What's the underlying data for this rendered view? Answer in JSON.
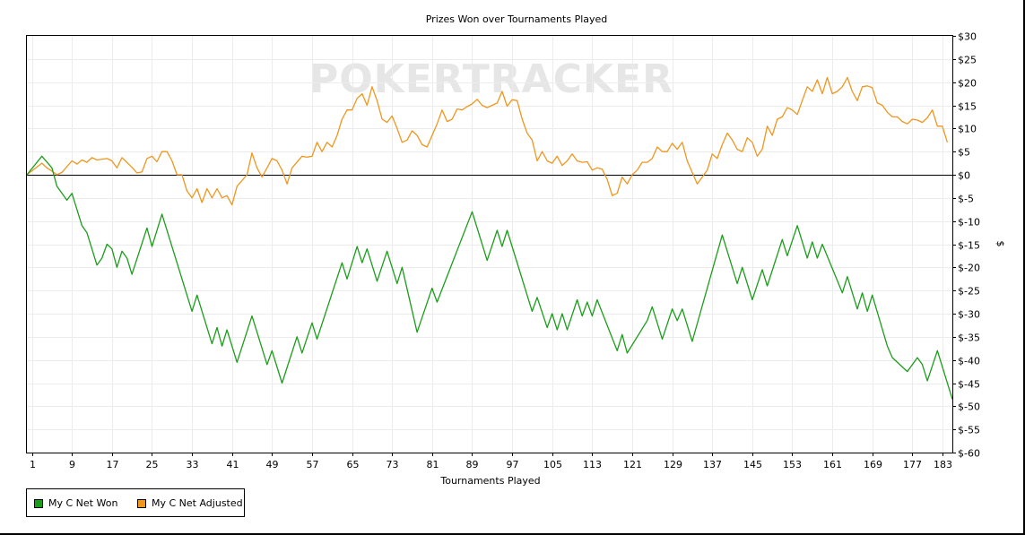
{
  "chart_data": {
    "type": "line",
    "title": "Prizes Won over Tournaments Played",
    "xlabel": "Tournaments Played",
    "ylabel": "$",
    "xlim": [
      0,
      183
    ],
    "ylim": [
      -60,
      30
    ],
    "grid": true,
    "legend_position": "bottom-left",
    "watermark": "POKERTRACKER",
    "x_ticks": [
      1,
      9,
      17,
      25,
      33,
      41,
      49,
      57,
      65,
      73,
      81,
      89,
      97,
      105,
      113,
      121,
      129,
      137,
      145,
      153,
      161,
      169,
      177,
      183
    ],
    "y_ticks": [
      30,
      25,
      20,
      15,
      10,
      5,
      0,
      -5,
      -10,
      -15,
      -20,
      -25,
      -30,
      -35,
      -40,
      -45,
      -50,
      -55,
      -60
    ],
    "y_tick_labels": [
      "$30",
      "$25",
      "$20",
      "$15",
      "$10",
      "$5",
      "$0",
      "$-5",
      "$-10",
      "$-15",
      "$-20",
      "$-25",
      "$-30",
      "$-35",
      "$-40",
      "$-45",
      "$-50",
      "$-55",
      "$-60"
    ],
    "series": [
      {
        "name": "My C Net Won",
        "color": "#1a9e1a",
        "points": [
          [
            0,
            0
          ],
          [
            3,
            4
          ],
          [
            5,
            1.5
          ],
          [
            6,
            -2.5
          ],
          [
            8,
            -5.5
          ],
          [
            9,
            -4
          ],
          [
            11,
            -11
          ],
          [
            12,
            -12.5
          ],
          [
            14,
            -19.5
          ],
          [
            15,
            -18
          ],
          [
            16,
            -15
          ],
          [
            17,
            -16
          ],
          [
            18,
            -20
          ],
          [
            19,
            -16.5
          ],
          [
            20,
            -18
          ],
          [
            21,
            -21.5
          ],
          [
            24,
            -11.5
          ],
          [
            25,
            -15.5
          ],
          [
            27,
            -8.5
          ],
          [
            33,
            -29.5
          ],
          [
            34,
            -26
          ],
          [
            37,
            -36.5
          ],
          [
            38,
            -33
          ],
          [
            39,
            -37
          ],
          [
            40,
            -33.5
          ],
          [
            42,
            -40.5
          ],
          [
            45,
            -30.5
          ],
          [
            48,
            -41
          ],
          [
            49,
            -38
          ],
          [
            51,
            -45
          ],
          [
            54,
            -35
          ],
          [
            55,
            -38.5
          ],
          [
            57,
            -32
          ],
          [
            58,
            -35.5
          ],
          [
            63,
            -19
          ],
          [
            64,
            -22.5
          ],
          [
            66,
            -15.5
          ],
          [
            67,
            -19
          ],
          [
            68,
            -16
          ],
          [
            70,
            -23
          ],
          [
            72,
            -16.5
          ],
          [
            74,
            -23.5
          ],
          [
            75,
            -20
          ],
          [
            78,
            -34
          ],
          [
            81,
            -24.5
          ],
          [
            82,
            -27.5
          ],
          [
            89,
            -8
          ],
          [
            92,
            -18.5
          ],
          [
            94,
            -12
          ],
          [
            95,
            -15.5
          ],
          [
            96,
            -12
          ],
          [
            101,
            -29.5
          ],
          [
            102,
            -26.5
          ],
          [
            104,
            -33
          ],
          [
            105,
            -30
          ],
          [
            106,
            -33.5
          ],
          [
            107,
            -30
          ],
          [
            108,
            -33.5
          ],
          [
            110,
            -27
          ],
          [
            111,
            -30.5
          ],
          [
            112,
            -27.5
          ],
          [
            113,
            -30.5
          ],
          [
            114,
            -27
          ],
          [
            118,
            -38
          ],
          [
            119,
            -34.5
          ],
          [
            120,
            -38.5
          ],
          [
            124,
            -31.5
          ],
          [
            125,
            -28.5
          ],
          [
            127,
            -35.5
          ],
          [
            129,
            -29
          ],
          [
            130,
            -31.5
          ],
          [
            131,
            -29
          ],
          [
            133,
            -36
          ],
          [
            139,
            -13
          ],
          [
            142,
            -23.5
          ],
          [
            143,
            -20
          ],
          [
            145,
            -27
          ],
          [
            147,
            -20.5
          ],
          [
            148,
            -24
          ],
          [
            151,
            -14
          ],
          [
            152,
            -17.5
          ],
          [
            154,
            -11
          ],
          [
            156,
            -18
          ],
          [
            157,
            -14.5
          ],
          [
            158,
            -18
          ],
          [
            159,
            -15
          ],
          [
            163,
            -25.5
          ],
          [
            164,
            -22
          ],
          [
            166,
            -29
          ],
          [
            167,
            -25.5
          ],
          [
            168,
            -29.5
          ],
          [
            169,
            -26
          ],
          [
            172,
            -37
          ],
          [
            173,
            -39.5
          ],
          [
            176,
            -42.5
          ],
          [
            178,
            -39.5
          ],
          [
            179,
            -41
          ],
          [
            180,
            -44.5
          ],
          [
            182,
            -38
          ],
          [
            185,
            -48.5
          ]
        ]
      },
      {
        "name": "My C Net Adjusted",
        "color": "#f0961e",
        "points": [
          [
            0,
            0
          ],
          [
            3,
            2.5
          ],
          [
            4,
            1.5
          ],
          [
            5,
            0.8
          ],
          [
            6,
            0
          ],
          [
            7,
            0.5
          ],
          [
            9,
            3
          ],
          [
            10,
            2.3
          ],
          [
            11,
            3.2
          ],
          [
            12,
            2.7
          ],
          [
            13,
            3.7
          ],
          [
            14,
            3.2
          ],
          [
            16,
            3.5
          ],
          [
            17,
            3
          ],
          [
            18,
            1.5
          ],
          [
            19,
            3.7
          ],
          [
            21,
            1.6
          ],
          [
            22,
            0.4
          ],
          [
            23,
            0.6
          ],
          [
            24,
            3.5
          ],
          [
            25,
            4
          ],
          [
            26,
            2.8
          ],
          [
            27,
            5
          ],
          [
            28,
            5
          ],
          [
            29,
            3
          ],
          [
            30,
            0
          ],
          [
            31,
            0
          ],
          [
            32,
            -3.5
          ],
          [
            33,
            -5
          ],
          [
            34,
            -3
          ],
          [
            35,
            -6
          ],
          [
            36,
            -3
          ],
          [
            37,
            -5
          ],
          [
            38,
            -3
          ],
          [
            39,
            -5
          ],
          [
            40,
            -4.5
          ],
          [
            41,
            -6.5
          ],
          [
            42,
            -2.5
          ],
          [
            44,
            0
          ],
          [
            45,
            4.7
          ],
          [
            46,
            1.5
          ],
          [
            47,
            -0.5
          ],
          [
            48,
            1.5
          ],
          [
            49,
            3.5
          ],
          [
            50,
            3
          ],
          [
            51,
            1
          ],
          [
            52,
            -2
          ],
          [
            53,
            1.5
          ],
          [
            55,
            4
          ],
          [
            56,
            3.8
          ],
          [
            57,
            4
          ],
          [
            58,
            7
          ],
          [
            59,
            5
          ],
          [
            60,
            7
          ],
          [
            61,
            6
          ],
          [
            62,
            8.5
          ],
          [
            63,
            12
          ],
          [
            64,
            14
          ],
          [
            65,
            14
          ],
          [
            66,
            16.5
          ],
          [
            67,
            17.5
          ],
          [
            68,
            15
          ],
          [
            69,
            19
          ],
          [
            70,
            16
          ],
          [
            71,
            12
          ],
          [
            72,
            11.3
          ],
          [
            73,
            12.7
          ],
          [
            74,
            10
          ],
          [
            75,
            7
          ],
          [
            76,
            7.5
          ],
          [
            77,
            9.5
          ],
          [
            78,
            8.5
          ],
          [
            79,
            6.5
          ],
          [
            80,
            6
          ],
          [
            82,
            11
          ],
          [
            83,
            14
          ],
          [
            84,
            11.5
          ],
          [
            85,
            12
          ],
          [
            86,
            14.2
          ],
          [
            87,
            14
          ],
          [
            88,
            14.7
          ],
          [
            89,
            15.3
          ],
          [
            90,
            16.3
          ],
          [
            91,
            15
          ],
          [
            92,
            14.5
          ],
          [
            93,
            15
          ],
          [
            94,
            15.5
          ],
          [
            95,
            18
          ],
          [
            96,
            14.8
          ],
          [
            97,
            16.2
          ],
          [
            98,
            16
          ],
          [
            99,
            12
          ],
          [
            100,
            9
          ],
          [
            101,
            7.5
          ],
          [
            102,
            3
          ],
          [
            103,
            5
          ],
          [
            104,
            3
          ],
          [
            105,
            2.5
          ],
          [
            106,
            4
          ],
          [
            107,
            2
          ],
          [
            108,
            3
          ],
          [
            109,
            4.5
          ],
          [
            110,
            3
          ],
          [
            111,
            2.7
          ],
          [
            112,
            2.8
          ],
          [
            113,
            1
          ],
          [
            114,
            1.5
          ],
          [
            115,
            1.2
          ],
          [
            116,
            -1
          ],
          [
            117,
            -4.5
          ],
          [
            118,
            -4
          ],
          [
            119,
            -0.5
          ],
          [
            120,
            -2
          ],
          [
            121,
            0
          ],
          [
            122,
            1
          ],
          [
            123,
            2.7
          ],
          [
            124,
            2.7
          ],
          [
            125,
            3.5
          ],
          [
            126,
            6
          ],
          [
            127,
            5
          ],
          [
            128,
            5
          ],
          [
            129,
            6.8
          ],
          [
            130,
            5.5
          ],
          [
            131,
            7
          ],
          [
            132,
            3
          ],
          [
            133,
            0.5
          ],
          [
            134,
            -2
          ],
          [
            135,
            -0.5
          ],
          [
            136,
            1
          ],
          [
            137,
            4.5
          ],
          [
            138,
            3.5
          ],
          [
            139,
            6.5
          ],
          [
            140,
            9
          ],
          [
            141,
            7.5
          ],
          [
            142,
            5.5
          ],
          [
            143,
            5
          ],
          [
            144,
            8
          ],
          [
            145,
            7
          ],
          [
            146,
            4
          ],
          [
            147,
            5.5
          ],
          [
            148,
            10.5
          ],
          [
            149,
            8.5
          ],
          [
            150,
            12
          ],
          [
            151,
            12.5
          ],
          [
            152,
            14.5
          ],
          [
            153,
            14
          ],
          [
            154,
            13
          ],
          [
            155,
            16
          ],
          [
            156,
            19
          ],
          [
            157,
            18
          ],
          [
            158,
            20.5
          ],
          [
            159,
            17.5
          ],
          [
            160,
            21
          ],
          [
            161,
            17.5
          ],
          [
            162,
            18
          ],
          [
            163,
            19
          ],
          [
            164,
            21
          ],
          [
            165,
            18
          ],
          [
            166,
            16
          ],
          [
            167,
            19
          ],
          [
            168,
            19.2
          ],
          [
            169,
            18.8
          ],
          [
            170,
            15.5
          ],
          [
            171,
            15
          ],
          [
            172,
            13.5
          ],
          [
            173,
            12.5
          ],
          [
            174,
            12.5
          ],
          [
            175,
            11.5
          ],
          [
            176,
            11
          ],
          [
            177,
            12
          ],
          [
            178,
            11.8
          ],
          [
            179,
            11.3
          ],
          [
            180,
            12.3
          ],
          [
            181,
            14
          ],
          [
            182,
            10.5
          ],
          [
            183,
            10.5
          ],
          [
            184,
            7
          ]
        ]
      }
    ]
  }
}
